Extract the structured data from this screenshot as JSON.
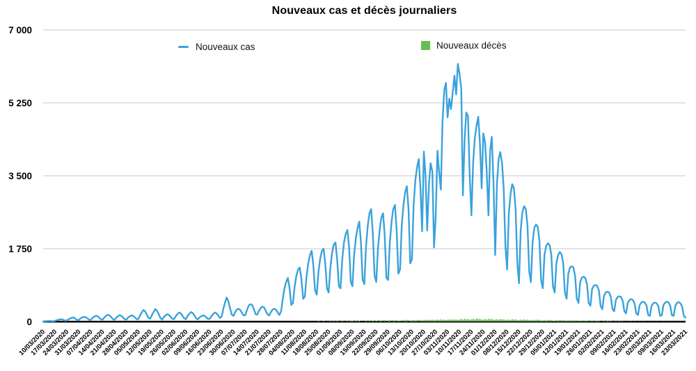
{
  "title": "Nouveaux cas et décès journaliers",
  "colors": {
    "cases": "#3AA2DB",
    "deaths": "#66BE4F",
    "gridline": "#C9C9C9",
    "axis": "#000000",
    "text": "#111111"
  },
  "chart_data": {
    "type": "line+bar",
    "title": "Nouveaux cas et décès journaliers",
    "legend_position": "top",
    "grid": "horizontal",
    "y_axis": {
      "min": 0,
      "max": 7000,
      "tick_values": [
        0,
        1750,
        3500,
        5250,
        7000
      ],
      "tick_labels": [
        "0",
        "1 750",
        "3 500",
        "5 250",
        "7 000"
      ]
    },
    "x_axis": {
      "tick_interval_days": 7,
      "tick_labels": [
        "10/03/2020",
        "17/03/2020",
        "24/03/2020",
        "31/03/2020",
        "07/04/2020",
        "14/04/2020",
        "21/04/2020",
        "28/04/2020",
        "05/05/2020",
        "12/05/2020",
        "19/05/2020",
        "26/05/2020",
        "02/06/2020",
        "09/06/2020",
        "16/06/2020",
        "23/06/2020",
        "30/06/2020",
        "07/07/2020",
        "14/07/2020",
        "21/07/2020",
        "28/07/2020",
        "04/08/2020",
        "11/08/2020",
        "18/08/2020",
        "25/08/2020",
        "01/09/2020",
        "08/09/2020",
        "15/09/2020",
        "22/09/2020",
        "29/09/2020",
        "06/10/2020",
        "13/10/2020",
        "20/10/2020",
        "27/10/2020",
        "03/11/2020",
        "10/11/2020",
        "17/11/2020",
        "24/11/2020",
        "01/12/2020",
        "08/12/2020",
        "15/12/2020",
        "22/12/2020",
        "29/12/2020",
        "05/01/2021",
        "12/01/2021",
        "19/01/2021",
        "26/01/2021",
        "02/02/2021",
        "09/02/2021",
        "16/02/2021",
        "23/02/2021",
        "02/03/2021",
        "09/03/2021",
        "16/03/2021",
        "23/03/2021"
      ]
    },
    "series": [
      {
        "name": "Nouveaux cas",
        "type": "line",
        "color": "#3AA2DB",
        "values": [
          5,
          8,
          12,
          15,
          18,
          14,
          10,
          20,
          35,
          45,
          55,
          60,
          40,
          25,
          30,
          60,
          80,
          95,
          100,
          70,
          40,
          40,
          80,
          100,
          115,
          110,
          80,
          50,
          40,
          90,
          120,
          140,
          130,
          95,
          55,
          50,
          100,
          140,
          165,
          150,
          110,
          60,
          45,
          95,
          130,
          155,
          140,
          100,
          60,
          50,
          100,
          130,
          150,
          140,
          100,
          60,
          60,
          150,
          220,
          280,
          250,
          170,
          90,
          70,
          160,
          230,
          300,
          260,
          180,
          90,
          50,
          110,
          150,
          180,
          160,
          120,
          70,
          60,
          130,
          180,
          220,
          200,
          140,
          80,
          60,
          140,
          190,
          230,
          210,
          150,
          80,
          55,
          100,
          130,
          150,
          140,
          105,
          65,
          70,
          130,
          180,
          220,
          200,
          150,
          90,
          120,
          300,
          460,
          580,
          480,
          320,
          170,
          140,
          230,
          290,
          310,
          280,
          210,
          150,
          160,
          290,
          390,
          420,
          400,
          300,
          180,
          170,
          260,
          330,
          360,
          340,
          260,
          175,
          150,
          230,
          290,
          310,
          290,
          220,
          160,
          250,
          550,
          800,
          950,
          1050,
          800,
          400,
          450,
          850,
          1100,
          1250,
          1300,
          1000,
          550,
          600,
          1100,
          1400,
          1600,
          1700,
          1350,
          750,
          650,
          1200,
          1500,
          1700,
          1750,
          1400,
          800,
          700,
          1300,
          1650,
          1850,
          1900,
          1500,
          850,
          800,
          1500,
          1900,
          2100,
          2200,
          1800,
          950,
          850,
          1600,
          2000,
          2250,
          2400,
          1900,
          1000,
          900,
          1800,
          2300,
          2600,
          2700,
          2100,
          1100,
          950,
          1750,
          2200,
          2500,
          2600,
          2050,
          1050,
          1000,
          1900,
          2400,
          2700,
          2800,
          2200,
          1150,
          1250,
          2300,
          2800,
          3100,
          3250,
          2700,
          1400,
          1500,
          2800,
          3400,
          3700,
          3900,
          3200,
          2170,
          4080,
          3500,
          2190,
          3300,
          3800,
          3600,
          1780,
          2550,
          4100,
          3600,
          3170,
          4800,
          5550,
          5730,
          4900,
          5350,
          5100,
          5500,
          5900,
          5450,
          6184,
          5950,
          5600,
          3030,
          4400,
          5020,
          4930,
          3500,
          2550,
          3800,
          4400,
          4700,
          4917,
          4300,
          3200,
          4517,
          4300,
          3600,
          2550,
          4100,
          4433,
          3300,
          1600,
          3300,
          3900,
          4070,
          3800,
          3200,
          1800,
          1250,
          2600,
          3050,
          3300,
          3200,
          2700,
          1400,
          920,
          2200,
          2630,
          2770,
          2700,
          2300,
          1200,
          950,
          1900,
          2250,
          2330,
          2280,
          1950,
          1000,
          800,
          1600,
          1820,
          1880,
          1840,
          1600,
          850,
          700,
          1400,
          1600,
          1670,
          1620,
          1400,
          700,
          550,
          1150,
          1300,
          1330,
          1300,
          1100,
          550,
          450,
          950,
          1060,
          1080,
          1050,
          900,
          450,
          380,
          780,
          860,
          880,
          860,
          750,
          380,
          300,
          620,
          700,
          720,
          700,
          600,
          300,
          250,
          520,
          590,
          610,
          590,
          500,
          250,
          200,
          450,
          520,
          540,
          520,
          440,
          200,
          160,
          400,
          460,
          480,
          460,
          390,
          160,
          140,
          380,
          440,
          460,
          440,
          370,
          140,
          150,
          400,
          460,
          480,
          460,
          380,
          150,
          140,
          380,
          450,
          470,
          440,
          360,
          130,
          100
        ]
      },
      {
        "name": "Nouveaux décès",
        "type": "bar",
        "color": "#66BE4F",
        "values": [
          0,
          0,
          0,
          0,
          0,
          0,
          0,
          0,
          0,
          0,
          0,
          0,
          0,
          0,
          0,
          0,
          1,
          0,
          2,
          0,
          0,
          0,
          1,
          0,
          2,
          0,
          1,
          0,
          0,
          2,
          0,
          1,
          0,
          0,
          0,
          0,
          1,
          2,
          0,
          1,
          0,
          0,
          0,
          0,
          1,
          0,
          1,
          0,
          0,
          0,
          1,
          0,
          1,
          0,
          0,
          0,
          0,
          0,
          1,
          0,
          0,
          0,
          0,
          0,
          0,
          0,
          1,
          0,
          0,
          0,
          0,
          0,
          0,
          0,
          0,
          0,
          0,
          0,
          0,
          0,
          0,
          0,
          0,
          0,
          0,
          0,
          0,
          0,
          1,
          0,
          0,
          0,
          0,
          1,
          0,
          0,
          0,
          0,
          0,
          0,
          0,
          1,
          0,
          0,
          0,
          0,
          1,
          0,
          2,
          0,
          1,
          0,
          0,
          0,
          1,
          0,
          1,
          0,
          0,
          0,
          1,
          0,
          1,
          0,
          0,
          0,
          0,
          0,
          1,
          0,
          1,
          0,
          0,
          0,
          1,
          0,
          0,
          1,
          0,
          0,
          0,
          2,
          0,
          3,
          0,
          2,
          0,
          0,
          3,
          0,
          4,
          0,
          3,
          0,
          2,
          0,
          5,
          0,
          6,
          0,
          3,
          0,
          20,
          0,
          0,
          25,
          0,
          0,
          0,
          15,
          0,
          30,
          0,
          20,
          0,
          0,
          25,
          0,
          0,
          30,
          0,
          15,
          20,
          0,
          30,
          0,
          25,
          0,
          0,
          0,
          30,
          0,
          35,
          0,
          25,
          0,
          25,
          0,
          35,
          30,
          0,
          40,
          0,
          30,
          35,
          0,
          40,
          30,
          0,
          25,
          30,
          0,
          40,
          35,
          45,
          0,
          30,
          35,
          40,
          30,
          45,
          0,
          40,
          30,
          40,
          45,
          35,
          50,
          40,
          45,
          30,
          45,
          50,
          40,
          55,
          45,
          50,
          35,
          50,
          55,
          45,
          60,
          50,
          55,
          40,
          55,
          65,
          50,
          70,
          60,
          65,
          45,
          60,
          70,
          55,
          80,
          65,
          70,
          50,
          55,
          65,
          50,
          70,
          60,
          65,
          45,
          50,
          60,
          45,
          65,
          55,
          60,
          40,
          45,
          55,
          40,
          60,
          50,
          55,
          35,
          40,
          50,
          35,
          55,
          45,
          50,
          30,
          35,
          45,
          30,
          50,
          40,
          45,
          25,
          30,
          40,
          25,
          45,
          35,
          40,
          20,
          25,
          35,
          20,
          40,
          30,
          35,
          15,
          20,
          30,
          15,
          35,
          25,
          30,
          10,
          15,
          25,
          10,
          30,
          20,
          25,
          5,
          10,
          20,
          5,
          25,
          15,
          20,
          0,
          5,
          15,
          0,
          20,
          10,
          15,
          0,
          0,
          10,
          0,
          15,
          5,
          10,
          0,
          0,
          5,
          0,
          10,
          0,
          5,
          0,
          0,
          5,
          0,
          8,
          0,
          0,
          0,
          0,
          0,
          5,
          0,
          6,
          0,
          0,
          0,
          4,
          0,
          5,
          0,
          0,
          0,
          0,
          0,
          4,
          0,
          5,
          0,
          0,
          0
        ]
      }
    ]
  }
}
